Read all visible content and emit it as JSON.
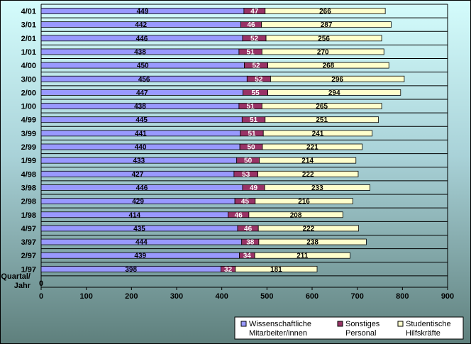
{
  "chart_data": {
    "type": "bar",
    "orientation": "horizontal",
    "stacked": true,
    "categories": [
      "1/97",
      "2/97",
      "3/97",
      "4/97",
      "1/98",
      "2/98",
      "3/98",
      "4/98",
      "1/99",
      "2/99",
      "3/99",
      "4/99",
      "1/00",
      "2/00",
      "3/00",
      "4/00",
      "1/01",
      "2/01",
      "3/01",
      "4/01"
    ],
    "series": [
      {
        "name": "Wissenschaftliche Mitarbeiter/innen",
        "name_lines": [
          "Wissenschaftliche",
          "Mitarbeiter/innen"
        ],
        "color": "#9999FF",
        "values": [
          398,
          439,
          444,
          435,
          414,
          429,
          446,
          427,
          433,
          440,
          441,
          445,
          438,
          447,
          456,
          450,
          438,
          446,
          442,
          449
        ]
      },
      {
        "name": "Sonstiges Personal",
        "name_lines": [
          "Sonstiges",
          "Personal"
        ],
        "color": "#993366",
        "values": [
          32,
          34,
          38,
          46,
          46,
          45,
          49,
          53,
          50,
          50,
          51,
          51,
          51,
          55,
          52,
          52,
          51,
          52,
          46,
          47
        ]
      },
      {
        "name": "Studentische Hilfskräfte",
        "name_lines": [
          "Studentische",
          "Hilfskräfte"
        ],
        "color": "#FFFFCC",
        "values": [
          181,
          211,
          238,
          222,
          208,
          216,
          233,
          222,
          214,
          221,
          241,
          251,
          265,
          294,
          296,
          268,
          270,
          256,
          287,
          266
        ]
      }
    ],
    "category_axis_label": [
      "Quartal/",
      "Jahr"
    ],
    "baseline_tick": "0",
    "xlim": [
      0,
      900
    ],
    "xticks": [
      0,
      100,
      200,
      300,
      400,
      500,
      600,
      700,
      800,
      900
    ],
    "grid": true,
    "legend_position": "bottom-right"
  }
}
